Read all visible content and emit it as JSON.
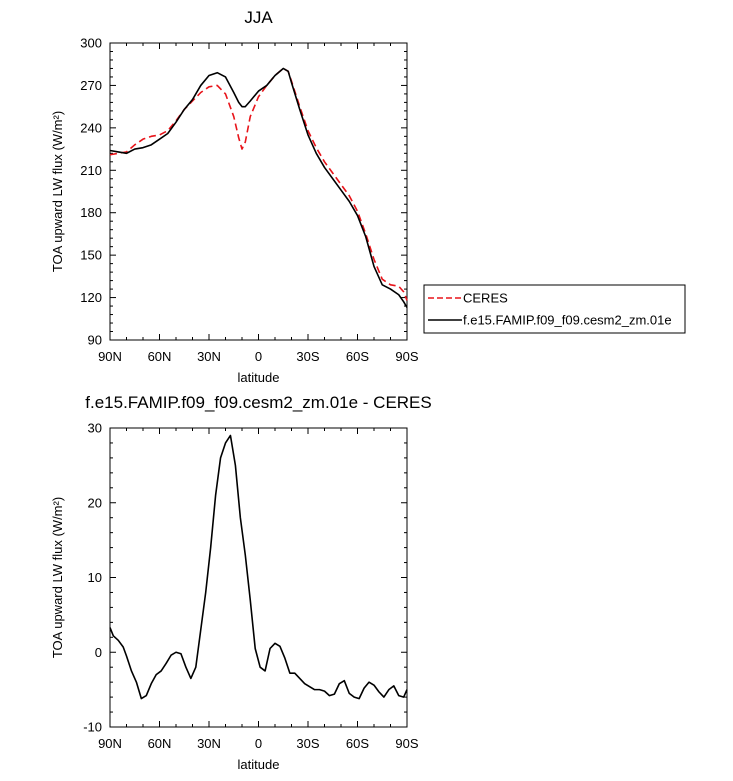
{
  "chart_data": [
    {
      "type": "line",
      "title": "JJA",
      "xlabel": "latitude",
      "ylabel": "TOA upward LW flux (W/m²)",
      "xlim": [
        90,
        -90
      ],
      "ylim": [
        90,
        300
      ],
      "x_ticks": [
        90,
        60,
        30,
        0,
        -30,
        -60,
        -90
      ],
      "x_tick_labels": [
        "90N",
        "60N",
        "30N",
        "0",
        "30S",
        "60S",
        "90S"
      ],
      "y_ticks": [
        90,
        120,
        150,
        180,
        210,
        240,
        270,
        300
      ],
      "y_tick_labels": [
        "90",
        "120",
        "150",
        "180",
        "210",
        "240",
        "270",
        "300"
      ],
      "legend": "right",
      "series": [
        {
          "name": "CERES",
          "style": "dashed",
          "color": "#e8141a",
          "x": [
            90,
            85,
            80,
            75,
            70,
            65,
            60,
            55,
            50,
            45,
            40,
            35,
            30,
            25,
            20,
            15,
            12,
            10,
            8,
            5,
            0,
            -5,
            -10,
            -15,
            -18,
            -20,
            -25,
            -30,
            -35,
            -40,
            -45,
            -50,
            -55,
            -60,
            -65,
            -70,
            -75,
            -80,
            -85,
            -88,
            -90
          ],
          "y": [
            221,
            222,
            223,
            228,
            232,
            234,
            235,
            238,
            245,
            253,
            259,
            265,
            269,
            270,
            264,
            248,
            233,
            225,
            230,
            248,
            262,
            270,
            277,
            282,
            280,
            273,
            255,
            238,
            226,
            216,
            208,
            200,
            192,
            181,
            165,
            147,
            133,
            129,
            128,
            124,
            118
          ]
        },
        {
          "name": "f.e15.FAMIP.f09_f09.cesm2_zm.01e",
          "style": "solid",
          "color": "#000000",
          "x": [
            90,
            85,
            80,
            75,
            70,
            65,
            60,
            55,
            50,
            45,
            40,
            35,
            30,
            25,
            20,
            15,
            12,
            10,
            8,
            5,
            0,
            -5,
            -10,
            -15,
            -18,
            -20,
            -25,
            -30,
            -35,
            -40,
            -45,
            -50,
            -55,
            -60,
            -65,
            -70,
            -75,
            -80,
            -85,
            -88,
            -90
          ],
          "y": [
            224,
            223,
            222,
            225,
            226,
            228,
            232,
            236,
            244,
            253,
            260,
            270,
            277,
            279,
            276,
            265,
            258,
            255,
            255,
            259,
            266,
            270,
            277,
            282,
            280,
            272,
            253,
            235,
            222,
            212,
            204,
            196,
            188,
            178,
            163,
            142,
            129,
            126,
            122,
            117,
            113
          ]
        }
      ]
    },
    {
      "type": "line",
      "title": "f.e15.FAMIP.f09_f09.cesm2_zm.01e - CERES",
      "xlabel": "latitude",
      "ylabel": "TOA upward LW flux (W/m²)",
      "xlim": [
        90,
        -90
      ],
      "ylim": [
        -10,
        30
      ],
      "x_ticks": [
        90,
        60,
        30,
        0,
        -30,
        -60,
        -90
      ],
      "x_tick_labels": [
        "90N",
        "60N",
        "30N",
        "0",
        "30S",
        "60S",
        "90S"
      ],
      "y_ticks": [
        -10,
        0,
        10,
        20,
        30
      ],
      "y_tick_labels": [
        "-10",
        "0",
        "10",
        "20",
        "30"
      ],
      "series": [
        {
          "name": "f.e15.FAMIP.f09_f09.cesm2_zm.01e - CERES",
          "style": "solid",
          "color": "#000000",
          "x": [
            90,
            88,
            85,
            82,
            80,
            77,
            74,
            71,
            68,
            65,
            62,
            59,
            56,
            53,
            50,
            47,
            44,
            41,
            38,
            35,
            32,
            29,
            26,
            23,
            20,
            17,
            14,
            11,
            8,
            5,
            2,
            -1,
            -4,
            -7,
            -10,
            -13,
            -16,
            -19,
            -22,
            -25,
            -28,
            -31,
            -34,
            -37,
            -40,
            -43,
            -46,
            -49,
            -52,
            -55,
            -58,
            -61,
            -64,
            -67,
            -70,
            -73,
            -76,
            -79,
            -82,
            -85,
            -88,
            -90
          ],
          "y": [
            3.3,
            2.2,
            1.6,
            0.7,
            -0.5,
            -2.5,
            -4.0,
            -6.2,
            -5.8,
            -4.2,
            -3.0,
            -2.5,
            -1.5,
            -0.4,
            0.0,
            -0.2,
            -2.0,
            -3.5,
            -2.0,
            3.0,
            8.0,
            14.0,
            21.0,
            26.0,
            28.0,
            29.0,
            25.0,
            18.0,
            13.0,
            7.0,
            0.5,
            -2.0,
            -2.5,
            0.5,
            1.2,
            0.8,
            -0.8,
            -2.8,
            -2.8,
            -3.5,
            -4.2,
            -4.6,
            -5.0,
            -5.0,
            -5.2,
            -5.8,
            -5.6,
            -4.2,
            -3.8,
            -5.5,
            -6.0,
            -6.2,
            -4.8,
            -4.0,
            -4.4,
            -5.3,
            -6.0,
            -5.0,
            -4.5,
            -5.8,
            -6.0,
            -5.0
          ]
        }
      ]
    }
  ]
}
